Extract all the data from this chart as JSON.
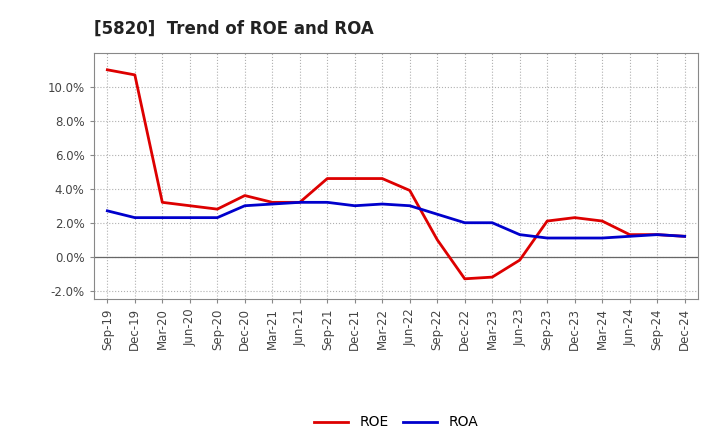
{
  "title": "[5820]  Trend of ROE and ROA",
  "labels": [
    "Sep-19",
    "Dec-19",
    "Mar-20",
    "Jun-20",
    "Sep-20",
    "Dec-20",
    "Mar-21",
    "Jun-21",
    "Sep-21",
    "Dec-21",
    "Mar-22",
    "Jun-22",
    "Sep-22",
    "Dec-22",
    "Mar-23",
    "Jun-23",
    "Sep-23",
    "Dec-23",
    "Mar-24",
    "Jun-24",
    "Sep-24",
    "Dec-24"
  ],
  "ROE": [
    11.0,
    10.7,
    3.2,
    3.0,
    2.8,
    3.6,
    3.2,
    3.2,
    4.6,
    4.6,
    4.6,
    3.9,
    1.0,
    -1.3,
    -1.2,
    -0.2,
    2.1,
    2.3,
    2.1,
    1.3,
    1.3,
    1.2
  ],
  "ROA": [
    2.7,
    2.3,
    2.3,
    2.3,
    2.3,
    3.0,
    3.1,
    3.2,
    3.2,
    3.0,
    3.1,
    3.0,
    2.5,
    2.0,
    2.0,
    1.3,
    1.1,
    1.1,
    1.1,
    1.2,
    1.3,
    1.2
  ],
  "ROE_color": "#dd0000",
  "ROA_color": "#0000cc",
  "bg_color": "#ffffff",
  "plot_bg_color": "#ffffff",
  "grid_color": "#b0b0b0",
  "ylim": [
    -2.5,
    12.0
  ],
  "yticks": [
    -2.0,
    0.0,
    2.0,
    4.0,
    6.0,
    8.0,
    10.0
  ],
  "line_width": 2.0,
  "title_fontsize": 12,
  "tick_fontsize": 8.5,
  "legend_fontsize": 10
}
